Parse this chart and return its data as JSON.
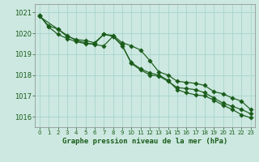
{
  "title": "Graphe pression niveau de la mer (hPa)",
  "bg_color": "#cce8e0",
  "grid_color": "#a8d4cc",
  "line_color": "#1a5c1a",
  "ylim": [
    1015.5,
    1021.4
  ],
  "xlim": [
    -0.5,
    23.5
  ],
  "yticks": [
    1016,
    1017,
    1018,
    1019,
    1020,
    1021
  ],
  "xticks": [
    0,
    1,
    2,
    3,
    4,
    5,
    6,
    7,
    8,
    9,
    10,
    11,
    12,
    13,
    14,
    15,
    16,
    17,
    18,
    19,
    20,
    21,
    22,
    23
  ],
  "series1_x": [
    0,
    1,
    2,
    3,
    4,
    5,
    6,
    7,
    8,
    9,
    10,
    11,
    12,
    13,
    14,
    15,
    16,
    17,
    18,
    19,
    20,
    21,
    22,
    23
  ],
  "series1_y": [
    1020.85,
    1020.35,
    1020.2,
    1019.85,
    1019.7,
    1019.65,
    1019.55,
    1019.95,
    1019.9,
    1019.55,
    1019.4,
    1019.2,
    1018.7,
    1018.15,
    1018.0,
    1017.7,
    1017.65,
    1017.6,
    1017.5,
    1017.2,
    1017.1,
    1016.9,
    1016.75,
    1016.35
  ],
  "series2_x": [
    0,
    1,
    2,
    3,
    4,
    5,
    6,
    7,
    8,
    9,
    10,
    11,
    12,
    13,
    14,
    15,
    16,
    17,
    18,
    19,
    20,
    21,
    22,
    23
  ],
  "series2_y": [
    1020.85,
    1020.3,
    1019.95,
    1019.75,
    1019.6,
    1019.5,
    1019.5,
    1019.95,
    1019.85,
    1019.45,
    1018.55,
    1018.25,
    1018.0,
    1017.95,
    1017.7,
    1017.4,
    1017.35,
    1017.3,
    1017.15,
    1016.9,
    1016.65,
    1016.5,
    1016.35,
    1016.15
  ],
  "series3_x": [
    0,
    2,
    3,
    4,
    5,
    6,
    7,
    8,
    9,
    10,
    11,
    12,
    13,
    14,
    15,
    16,
    17,
    18,
    19,
    20,
    21,
    22,
    23
  ],
  "series3_y": [
    1020.8,
    1020.2,
    1019.9,
    1019.65,
    1019.55,
    1019.45,
    1019.4,
    1019.85,
    1019.4,
    1018.6,
    1018.3,
    1018.1,
    1018.0,
    1017.75,
    1017.3,
    1017.15,
    1017.05,
    1017.0,
    1016.8,
    1016.55,
    1016.35,
    1016.1,
    1015.95
  ],
  "marker": "D",
  "markersize": 2.8,
  "linewidth": 0.85
}
